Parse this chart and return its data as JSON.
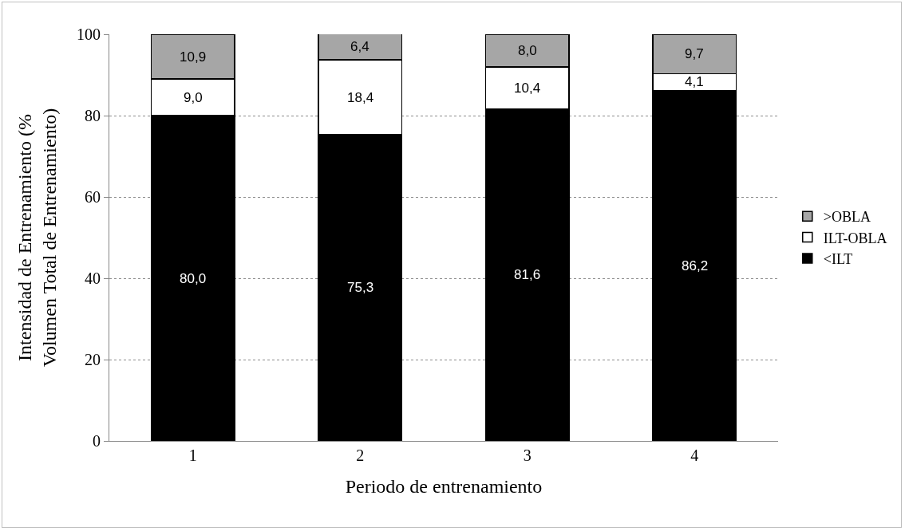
{
  "chart_data": {
    "type": "bar",
    "stacked": true,
    "xlabel": "Periodo de entrenamiento",
    "ylabel": "Intensidad de Entrenamiento (% Volumen Total de Entrenamiento)",
    "categories": [
      "1",
      "2",
      "3",
      "4"
    ],
    "series": [
      {
        "name": "<ILT",
        "color": "#000000",
        "values": [
          80.0,
          75.3,
          81.6,
          86.2
        ],
        "value_labels": [
          "80,0",
          "75,3",
          "81,6",
          "86,2"
        ]
      },
      {
        "name": "ILT-OBLA",
        "color": "#ffffff",
        "values": [
          9.0,
          18.4,
          10.4,
          4.1
        ],
        "value_labels": [
          "9,0",
          "18,4",
          "10,4",
          "4,1"
        ]
      },
      {
        "name": ">OBLA",
        "color": "#a6a6a6",
        "values": [
          10.9,
          6.4,
          8.0,
          9.7
        ],
        "value_labels": [
          "10,9",
          "6,4",
          "8,0",
          "9,7"
        ]
      }
    ],
    "ylim": [
      0,
      100
    ],
    "yticks": [
      0,
      20,
      40,
      60,
      80,
      100
    ],
    "grid": "y",
    "legend": "right"
  }
}
